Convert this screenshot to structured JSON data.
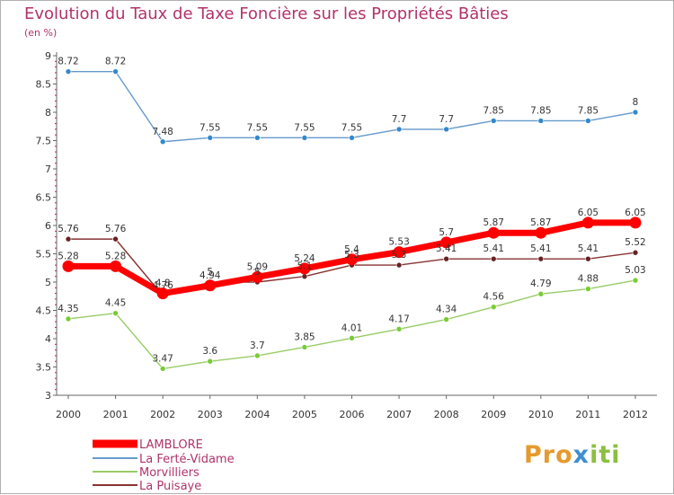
{
  "colors": {
    "title": "#b0336b",
    "axis": "#666666",
    "grid": "#dddddd",
    "tickMark": "#c0203d",
    "series": [
      "#ff0000",
      "#6699cc",
      "#99cc66",
      "#883333"
    ],
    "markers": [
      "#ff0000",
      "#3388cc",
      "#77cc33",
      "#662222"
    ]
  },
  "chart_data": {
    "type": "line",
    "title": "Evolution du Taux de Taxe Foncière sur les Propriétés Bâties",
    "ylabel": "(en %)",
    "xlabel": "",
    "x": [
      "2000",
      "2001",
      "2002",
      "2003",
      "2004",
      "2005",
      "2006",
      "2007",
      "2008",
      "2009",
      "2010",
      "2011",
      "2012"
    ],
    "ylim": [
      3,
      9
    ],
    "yticks": [
      "3",
      "3.5",
      "4",
      "4.5",
      "5",
      "5.5",
      "6",
      "6.5",
      "7",
      "7.5",
      "8",
      "8.5",
      "9"
    ],
    "grid": false,
    "legend_position": "bottom-left",
    "series": [
      {
        "name": "LAMBLORE",
        "values": [
          5.28,
          5.28,
          4.8,
          4.94,
          5.09,
          5.24,
          5.4,
          5.53,
          5.7,
          5.87,
          5.87,
          6.05,
          6.05
        ],
        "labels": [
          "5.28",
          "5.28",
          "4.8",
          "4.94",
          "5.09",
          "5.24",
          "5.4",
          "5.53",
          "5.7",
          "5.87",
          "5.87",
          "6.05",
          "6.05"
        ]
      },
      {
        "name": "La Ferté-Vidame",
        "values": [
          8.72,
          8.72,
          7.48,
          7.55,
          7.55,
          7.55,
          7.55,
          7.7,
          7.7,
          7.85,
          7.85,
          7.85,
          8
        ],
        "labels": [
          "8.72",
          "8.72",
          "7.48",
          "7.55",
          "7.55",
          "7.55",
          "7.55",
          "7.7",
          "7.7",
          "7.85",
          "7.85",
          "7.85",
          "8"
        ]
      },
      {
        "name": "Morvilliers",
        "values": [
          4.35,
          4.45,
          3.47,
          3.6,
          3.7,
          3.85,
          4.01,
          4.17,
          4.34,
          4.56,
          4.79,
          4.88,
          5.03
        ],
        "labels": [
          "4.35",
          "4.45",
          "3.47",
          "3.6",
          "3.7",
          "3.85",
          "4.01",
          "4.17",
          "4.34",
          "4.56",
          "4.79",
          "4.88",
          "5.03"
        ]
      },
      {
        "name": "La Puisaye",
        "values": [
          5.76,
          5.76,
          4.76,
          5,
          5,
          5.1,
          5.3,
          5.3,
          5.41,
          5.41,
          5.41,
          5.41,
          5.52
        ],
        "labels": [
          "5.76",
          "5.76",
          "4.76",
          "5",
          "5",
          "5.1",
          "5.3",
          "5.3",
          "5.41",
          "5.41",
          "5.41",
          "5.41",
          "5.52"
        ]
      }
    ]
  },
  "logo": {
    "part1": "Pro",
    "part2": "x",
    "part3": "iti"
  }
}
